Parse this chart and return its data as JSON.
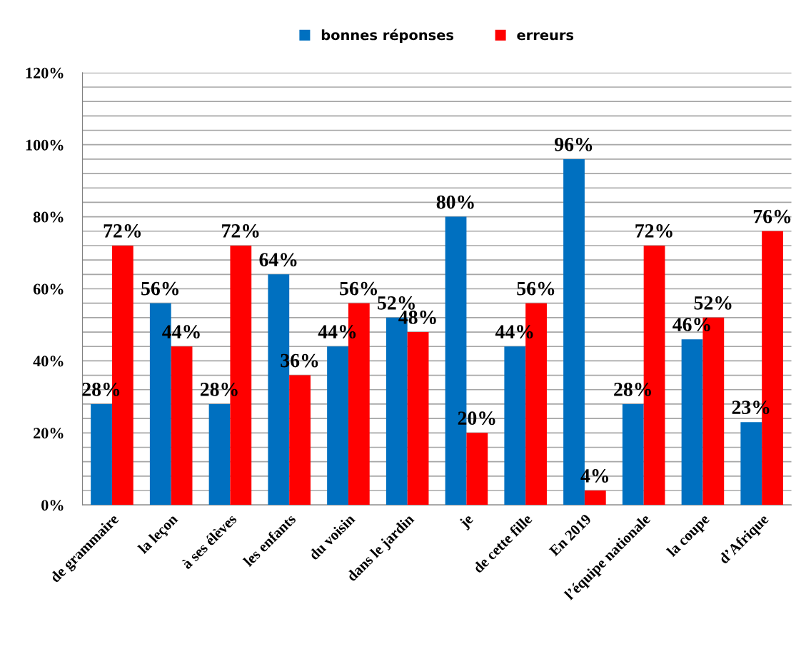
{
  "chart_data": {
    "type": "bar",
    "categories": [
      "de grammaire",
      "la leçon",
      "à ses élèves",
      "les enfants",
      "du voisin",
      "dans le jardin",
      "je",
      "de cette fille",
      "En 2019",
      "l’équipe nationale",
      "la coupe",
      "d’Afrique"
    ],
    "series": [
      {
        "name": "bonnes réponses",
        "color": "#0070c0",
        "values": [
          28,
          56,
          28,
          64,
          44,
          52,
          80,
          44,
          96,
          28,
          46,
          23
        ],
        "value_labels": [
          "28%",
          "56%",
          "28%",
          "64%",
          "44%",
          "52%",
          "80%",
          "44%",
          "96%",
          "28%",
          "46%",
          "23%"
        ]
      },
      {
        "name": "erreurs",
        "color": "#ff0000",
        "values": [
          72,
          44,
          72,
          36,
          56,
          48,
          20,
          56,
          4,
          72,
          52,
          76
        ],
        "value_labels": [
          "72%",
          "44%",
          "72%",
          "36%",
          "56%",
          "48%",
          "20%",
          "56%",
          "4%",
          "72%",
          "52%",
          "76%"
        ]
      }
    ],
    "ylim": [
      0,
      120
    ],
    "yticks": [
      {
        "value": 0,
        "label": "0%"
      },
      {
        "value": 4,
        "label": null
      },
      {
        "value": 8,
        "label": null
      },
      {
        "value": 12,
        "label": null
      },
      {
        "value": 16,
        "label": null
      },
      {
        "value": 20,
        "label": "20%"
      },
      {
        "value": 24,
        "label": null
      },
      {
        "value": 28,
        "label": null
      },
      {
        "value": 32,
        "label": null
      },
      {
        "value": 36,
        "label": null
      },
      {
        "value": 40,
        "label": "40%"
      },
      {
        "value": 44,
        "label": null
      },
      {
        "value": 48,
        "label": null
      },
      {
        "value": 52,
        "label": null
      },
      {
        "value": 56,
        "label": null
      },
      {
        "value": 60,
        "label": "60%"
      },
      {
        "value": 64,
        "label": null
      },
      {
        "value": 68,
        "label": null
      },
      {
        "value": 72,
        "label": null
      },
      {
        "value": 76,
        "label": null
      },
      {
        "value": 80,
        "label": "80%"
      },
      {
        "value": 84,
        "label": null
      },
      {
        "value": 88,
        "label": null
      },
      {
        "value": 92,
        "label": null
      },
      {
        "value": 96,
        "label": null
      },
      {
        "value": 100,
        "label": "100%"
      },
      {
        "value": 104,
        "label": null
      },
      {
        "value": 108,
        "label": null
      },
      {
        "value": 112,
        "label": null
      },
      {
        "value": 116,
        "label": null
      },
      {
        "value": 120,
        "label": "120%"
      }
    ],
    "grid": "y",
    "legend": "top"
  }
}
